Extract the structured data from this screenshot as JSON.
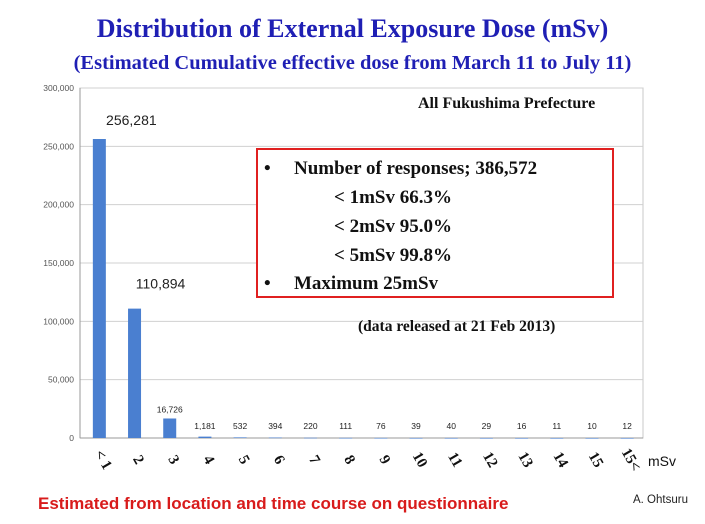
{
  "title": "Distribution of External Exposure Dose (mSv)",
  "subtitle": "(Estimated Cumulative effective dose from March 11 to July 11)",
  "region_label": "All Fukushima Prefecture",
  "info_box": {
    "bullet_symbol": "•",
    "responses": "Number of responses; 386,572",
    "lines": [
      "< 1mSv  66.3%",
      "< 2mSv  95.0%",
      "< 5mSv  99.8%"
    ],
    "maximum": "Maximum 25mSv"
  },
  "release_note": "(data released at 21 Feb 2013)",
  "footnote": "Estimated from location and time course on questionnaire",
  "author": "A. Ohtsuru",
  "colors": {
    "title": "#1f1fb4",
    "bar": "#4a7fd0",
    "footnote": "#d81b1b",
    "box_border": "#e02020"
  },
  "chart_data": {
    "type": "bar",
    "categories": [
      "< 1",
      "2",
      "3",
      "4",
      "5",
      "6",
      "7",
      "8",
      "9",
      "10",
      "11",
      "12",
      "13",
      "14",
      "15",
      "15<"
    ],
    "values": [
      256281,
      110894,
      16726,
      1181,
      532,
      394,
      220,
      111,
      76,
      39,
      40,
      29,
      16,
      11,
      10,
      12
    ],
    "value_labels": [
      "256,281",
      "110,894",
      "16,726",
      "1,181",
      "532",
      "394",
      "220",
      "111",
      "76",
      "39",
      "40",
      "29",
      "16",
      "11",
      "10",
      "12"
    ],
    "yticks": [
      "0",
      "50,000",
      "100,000",
      "150,000",
      "200,000",
      "250,000",
      "300,000"
    ],
    "ylim": [
      0,
      300000
    ],
    "xlabel_unit": "mSv",
    "grid": true
  }
}
